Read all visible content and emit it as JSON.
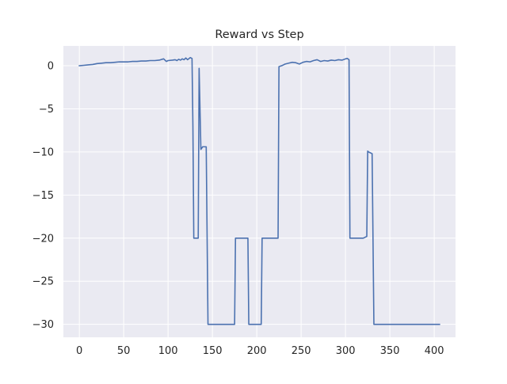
{
  "chart_data": {
    "type": "line",
    "title": "Reward vs Step",
    "xlabel": "",
    "ylabel": "",
    "xlim": [
      -18,
      424
    ],
    "ylim": [
      -31.5,
      2.3
    ],
    "xticks": [
      0,
      50,
      100,
      150,
      200,
      250,
      300,
      350,
      400
    ],
    "yticks": [
      0,
      -5,
      -10,
      -15,
      -20,
      -25,
      -30
    ],
    "ytick_labels": [
      "0",
      "−5",
      "−10",
      "−15",
      "−20",
      "−25",
      "−30"
    ],
    "grid": true,
    "legend": "none",
    "style": {
      "background": "#eaeaf2",
      "grid_color": "#ffffff",
      "line_color": "#4c72b0"
    },
    "series": [
      {
        "x": [
          0,
          5,
          10,
          15,
          20,
          25,
          30,
          35,
          40,
          45,
          50,
          55,
          60,
          65,
          70,
          75,
          80,
          85,
          90,
          95,
          98,
          100,
          105,
          108,
          110,
          112,
          114,
          116,
          118,
          120,
          122,
          125,
          127,
          128,
          129,
          130,
          131,
          132,
          133,
          134,
          135,
          137,
          139,
          141,
          143,
          145,
          150,
          160,
          170,
          175,
          176,
          180,
          185,
          190,
          191,
          195,
          200,
          205,
          206,
          210,
          215,
          220,
          224,
          225,
          228,
          232,
          236,
          240,
          244,
          248,
          252,
          256,
          260,
          264,
          268,
          272,
          276,
          280,
          284,
          288,
          292,
          296,
          300,
          302,
          304,
          305,
          306,
          307,
          308,
          312,
          316,
          320,
          324,
          325,
          326,
          328,
          330,
          332,
          333,
          334,
          340,
          350,
          360,
          370,
          380,
          390,
          400,
          406
        ],
        "y": [
          0,
          0.05,
          0.1,
          0.15,
          0.25,
          0.3,
          0.35,
          0.35,
          0.4,
          0.45,
          0.45,
          0.45,
          0.5,
          0.5,
          0.55,
          0.55,
          0.6,
          0.6,
          0.65,
          0.8,
          0.5,
          0.6,
          0.65,
          0.7,
          0.6,
          0.75,
          0.65,
          0.8,
          0.7,
          0.9,
          0.7,
          0.95,
          0.85,
          -7,
          -20,
          -20,
          -20,
          -20,
          -20,
          -20,
          -0.3,
          -9.7,
          -9.4,
          -9.4,
          -9.4,
          -30,
          -30,
          -30,
          -30,
          -30,
          -20,
          -20,
          -20,
          -20,
          -30,
          -30,
          -30,
          -30,
          -20,
          -20,
          -20,
          -20,
          -20,
          -0.1,
          0,
          0.2,
          0.3,
          0.4,
          0.35,
          0.2,
          0.4,
          0.5,
          0.45,
          0.6,
          0.7,
          0.5,
          0.6,
          0.55,
          0.65,
          0.6,
          0.7,
          0.65,
          0.8,
          0.85,
          0.7,
          -20,
          -20,
          -20,
          -20,
          -20,
          -20,
          -20,
          -19.8,
          -9.9,
          -10,
          -10.1,
          -10.2,
          -30,
          -30,
          -30,
          -30,
          -30,
          -30,
          -30,
          -30,
          -30,
          -30,
          -30
        ]
      }
    ]
  }
}
